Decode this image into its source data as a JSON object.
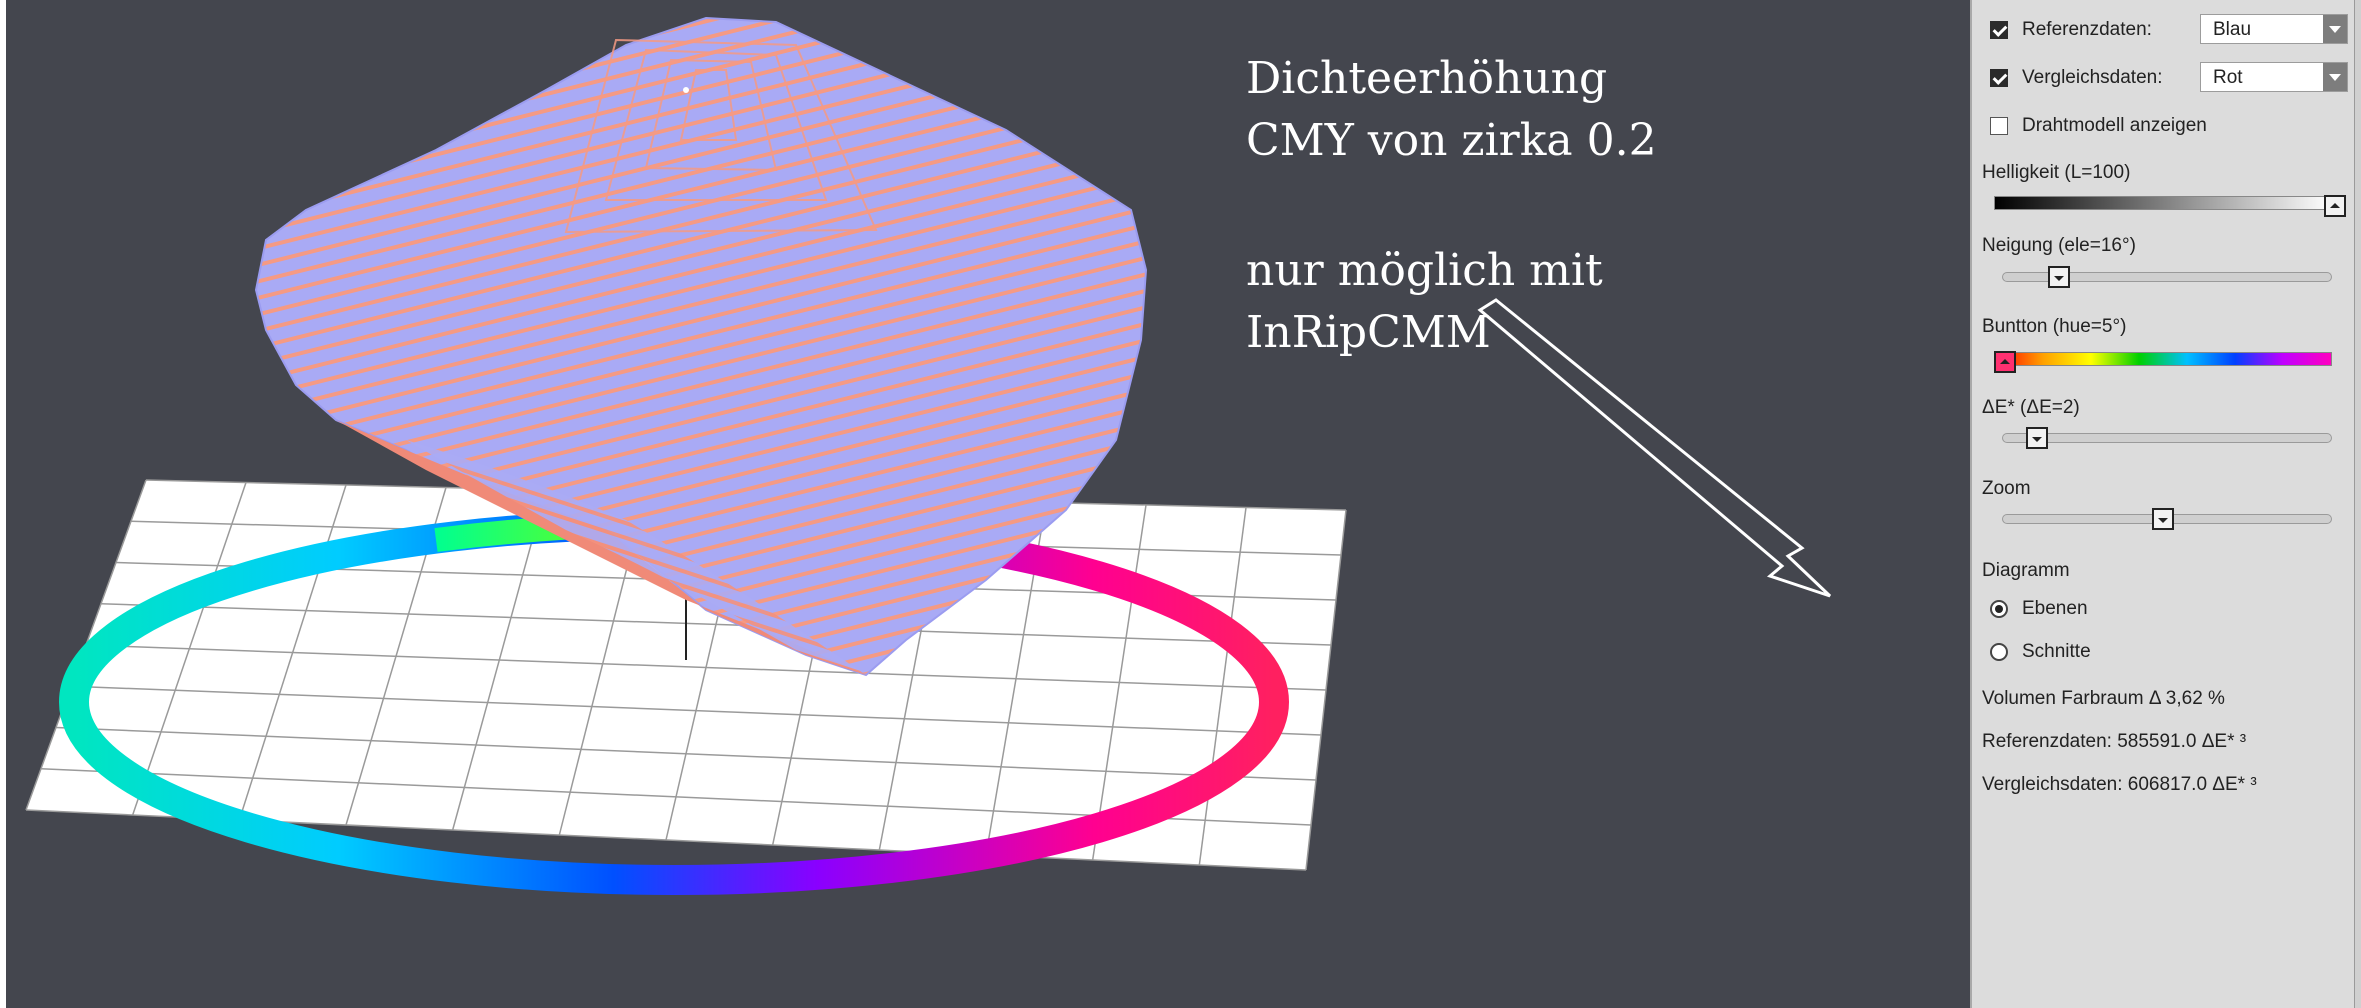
{
  "viewer": {
    "annotation": {
      "line1": "Dichteerhöhung",
      "line2": "CMY von zirka 0.2",
      "line3": "nur möglich mit",
      "line4": "InRipCMM"
    },
    "colors": {
      "background": "#44464e",
      "reference_solid": "#a9aaf5",
      "comparison_solid": "#f3907a",
      "plane": "#ffffff"
    }
  },
  "panel": {
    "reference": {
      "checked": true,
      "label": "Referenzdaten:",
      "color_value": "Blau"
    },
    "comparison": {
      "checked": true,
      "label": "Vergleichsdaten:",
      "color_value": "Rot"
    },
    "wireframe": {
      "checked": false,
      "label": "Drahtmodell anzeigen"
    },
    "brightness": {
      "label": "Helligkeit",
      "value_text": "(L=100)",
      "level": 1.0
    },
    "tilt": {
      "label": "Neigung",
      "value_text": "(ele=16°)",
      "level": 0.12
    },
    "hue": {
      "label": "Buntton",
      "value_text": "(hue=5°)",
      "level": 0.0
    },
    "delta_e": {
      "label": "ΔE*",
      "value_text": "(ΔE=2)",
      "level": 0.08
    },
    "zoom": {
      "label": "Zoom",
      "level": 0.5
    },
    "diagram": {
      "label": "Diagramm",
      "options": [
        {
          "label": "Ebenen",
          "selected": true
        },
        {
          "label": "Schnitte",
          "selected": false
        }
      ]
    },
    "stats": {
      "volume": "Volumen Farbraum Δ 3,62 %",
      "reference": "Referenzdaten: 585591.0 ΔE* ³",
      "comparison": "Vergleichsdaten: 606817.0 ΔE* ³"
    }
  }
}
